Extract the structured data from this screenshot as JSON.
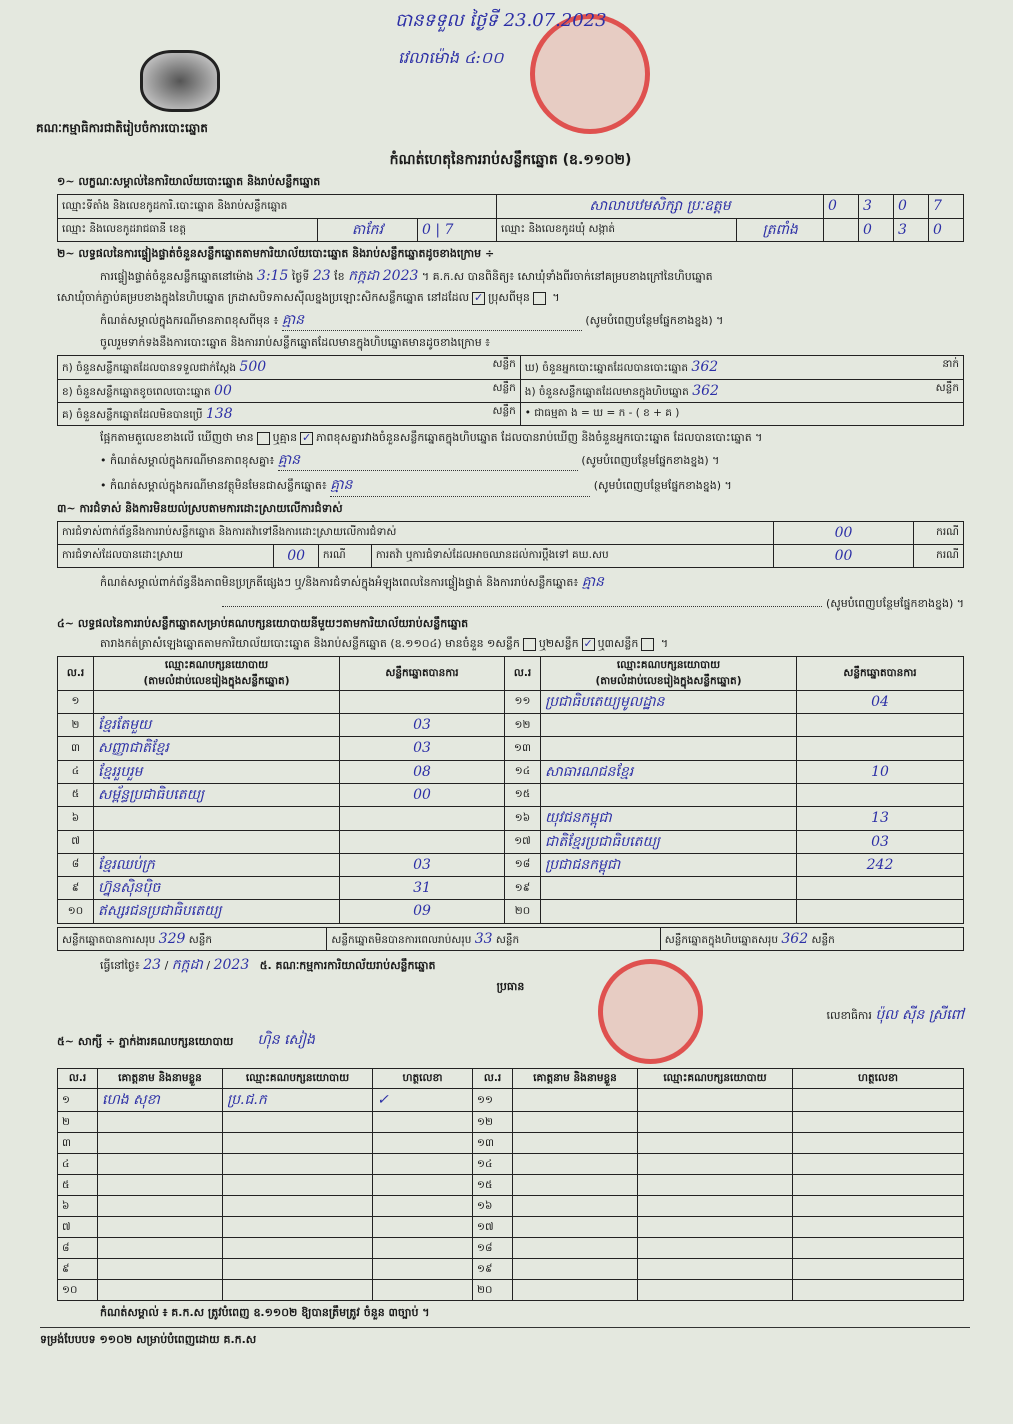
{
  "header_handwritten": {
    "received": "បានទទួល ថ្ងៃទី 23.07.2023",
    "time": "វេលាម៉ោង ៤:០០"
  },
  "org": "គណៈកម្មាធិការជាតិរៀបចំការបោះឆ្នោត",
  "title": "កំណត់ហេតុនៃការរាប់សន្លឹកឆ្នោត (ឧ.១១០២)",
  "s1": {
    "heading": "១~ លក្ខណៈសម្គាល់នៃការិយាល័យបោះឆ្នោត និងរាប់សន្លឹកឆ្នោត",
    "station_label": "ឈ្មោះទីតាំង និងលេខកូដការិ.បោះឆ្នោត និងរាប់សន្លឹកឆ្នោត",
    "station_value": "សាលាបឋមសិក្សា ប្រៈឧត្តម",
    "station_code": [
      "0",
      "3",
      "0",
      "7"
    ],
    "province_label": "ឈ្មោះ និងលេខកូដរាជធានី ខេត្ត",
    "province_value": "តាកែវ",
    "province_code": [
      "0",
      "7"
    ],
    "commune_label": "ឈ្មោះ និងលេខកូដឃុំ សង្កាត់",
    "commune_value": "ត្រពាំង",
    "commune_code": [
      "0",
      "3",
      "0"
    ]
  },
  "s2": {
    "heading": "២~ លទ្ធផលនៃការផ្ទៀងផ្ទាត់ចំនួនសន្លឹកឆ្នោតតាមការិយាល័យបោះឆ្នោត និងរាប់សន្លឹកឆ្នោតដូចខាងក្រោម ÷",
    "p1a": "ការផ្ទៀងផ្ទាត់ចំនួនសន្លឹកឆ្នោតនៅម៉ោង",
    "time": "3:15",
    "p1b": "ថ្ងៃទី",
    "day": "23",
    "p1c": "ខែ",
    "month": "កក្កដា",
    "year": "2023",
    "p1d": "។ គ.ក.ស បានពិនិត្យ៖ សោឃុំទាំងពីរចាក់នៅគម្របខាងក្រៅនៃហិបឆ្នោត",
    "p2": "សោឃុំចាក់ភ្ជាប់គម្របខាងក្នុងនៃហិបឆ្នោត ក្រដាសបិទភាសស៊ីលខ្នងប្រឡោះសិកសន្លឹកឆ្នោត នៅដដែល",
    "p2_yes": "ប្រុសពីមុន",
    "note_label": "កំណត់សម្គាល់ក្នុងករណីមានភាពខុសពីមុន ៖",
    "note_value": "គ្មាន",
    "fill_hint": "(សូមបំពេញបន្ថែមផ្នែកខាងខ្នង) ។",
    "p3": "ចូលរួមទាក់ទងនឹងការបោះឆ្នោត និងការរាប់សន្លឹកឆ្នោតដែលមានក្នុងហិបឆ្នោតមានដូចខាងក្រោម ៖",
    "rows": [
      {
        "l": "ក) ចំនួនសន្លឹកឆ្នោតដែលបានទទួលជាក់ស្តែង",
        "v": "500",
        "u": "សន្លឹក",
        "l2": "ឃ) ចំនួនអ្នកបោះឆ្នោតដែលបានបោះឆ្នោត",
        "v2": "362",
        "u2": "នាក់"
      },
      {
        "l": "ខ) ចំនួនសន្លឹកឆ្នោតខូចពេលបោះឆ្នោត",
        "v": "00",
        "u": "សន្លឹក",
        "l2": "ង) ចំនួនសន្លឹកឆ្នោតដែលមានក្នុងហិបឆ្នោត",
        "v2": "362",
        "u2": "សន្លឹក"
      },
      {
        "l": "គ) ចំនួនសន្លឹកឆ្នោតដែលមិនបានប្រើ",
        "v": "138",
        "u": "សន្លឹក",
        "l2": "• ជាធម្មតា ង = ឃ = ក - ( ខ + គ )",
        "v2": "",
        "u2": ""
      }
    ],
    "compare_a": "ផ្អែកតាមតួលេខខាងលើ ឃើញថា មាន",
    "compare_b": "ឬគ្មាន",
    "compare_c": "ភាពខុសគ្នារវាងចំនួនសន្លឹកឆ្នោតក្នុងហិបឆ្នោត ដែលបានរាប់ឃើញ និងចំនួនអ្នកបោះឆ្នោត ដែលបានបោះឆ្នោត ។",
    "diff_label": "• កំណត់សម្គាល់ក្នុងករណីមានភាពខុសគ្នា៖",
    "diff_value": "គ្មាន",
    "foreign_label": "• កំណត់សម្គាល់ក្នុងករណីមានវត្ថុមិនមែនជាសន្លឹកឆ្នោត៖",
    "foreign_value": "គ្មាន"
  },
  "s3": {
    "heading": "៣~ ការជំទាស់ និងការមិនយល់ស្របតាមការដោះស្រាយលើការជំទាស់",
    "r1": "ការជំទាស់ពាក់ព័ន្ធនឹងការរាប់សន្លឹកឆ្នោត និងការតវ៉ាទៅនឹងការដោះស្រាយលើការជំទាស់",
    "r1v": "00",
    "unit": "ករណី",
    "r2": "ការជំទាស់ដែលបានដោះស្រាយ",
    "r2v": "00",
    "r3": "ការតវ៉ា ឬការជំទាស់ដែលអាចឈានដល់ការប្ដឹងទៅ គឃ.សប",
    "r3v": "00",
    "note": "កំណត់សម្គាល់ពាក់ព័ន្ធនឹងភាពមិនប្រក្រតីផ្សេងៗ ឬ/និងការជំទាស់ក្នុងអំឡុងពេលនៃការផ្ទៀងផ្ទាត់ និងការរាប់សន្លឹកឆ្នោត៖",
    "note_value": "គ្មាន"
  },
  "s4": {
    "heading": "៤~ លទ្ធផលនៃការរាប់សន្លឹកឆ្នោតសម្រាប់គណបក្សនយោបាយនីមួយៗតាមការិយាល័យរាប់សន្លឹកឆ្នោត",
    "intro": "តារាងកត់ត្រាសំឡេងឆ្នោតតាមការិយាល័យបោះឆ្នោត និងរាប់សន្លឹកឆ្នោត (ឧ.១១០៤) មានចំនួន ១សន្លឹក",
    "opt2": "ឬ២សន្លឹក",
    "opt3": "ឬ៣សន្លឹក",
    "col_no": "ល.រ",
    "col_party": "ឈ្មោះគណបក្សនយោបាយ",
    "col_party_sub": "(តាមលំដាប់លេខរៀងក្នុងសន្លឹកឆ្នោត)",
    "col_votes": "សន្លឹកឆ្នោតបានការ",
    "parties": [
      {
        "no": "១",
        "name": "",
        "votes": ""
      },
      {
        "no": "២",
        "name": "ខ្មែរតែមួយ",
        "votes": "03"
      },
      {
        "no": "៣",
        "name": "សញ្ញាជាតិខ្មែរ",
        "votes": "03"
      },
      {
        "no": "៤",
        "name": "ខ្មែររួបរួម",
        "votes": "08"
      },
      {
        "no": "៥",
        "name": "សម្ព័ន្ធប្រជាធិបតេយ្យ",
        "votes": "00"
      },
      {
        "no": "៦",
        "name": "",
        "votes": ""
      },
      {
        "no": "៧",
        "name": "",
        "votes": ""
      },
      {
        "no": "៨",
        "name": "ខ្មែរឈប់ក្រ",
        "votes": "03"
      },
      {
        "no": "៩",
        "name": "ហ្វ៊ុនស៊ិនប៉ិច",
        "votes": "31"
      },
      {
        "no": "១០",
        "name": "ឥស្សរជនប្រជាធិបតេយ្យ",
        "votes": "09"
      },
      {
        "no": "១១",
        "name": "ប្រជាធិបតេយ្យមូលដ្ឋាន",
        "votes": "04"
      },
      {
        "no": "១២",
        "name": "",
        "votes": ""
      },
      {
        "no": "១៣",
        "name": "",
        "votes": ""
      },
      {
        "no": "១៤",
        "name": "សាធារណជនខ្មែរ",
        "votes": "10"
      },
      {
        "no": "១៥",
        "name": "",
        "votes": ""
      },
      {
        "no": "១៦",
        "name": "យុវជនកម្ពុជា",
        "votes": "13"
      },
      {
        "no": "១៧",
        "name": "ជាតិខ្មែរប្រជាធិបតេយ្យ",
        "votes": "03"
      },
      {
        "no": "១៨",
        "name": "ប្រជាជនកម្ពុជា",
        "votes": "242"
      },
      {
        "no": "១៩",
        "name": "",
        "votes": ""
      },
      {
        "no": "២០",
        "name": "",
        "votes": ""
      }
    ],
    "valid_label": "សន្លឹកឆ្នោតបានការសរុប",
    "valid": "329",
    "invalid_label": "សន្លឹកឆ្នោតមិនបានការពេលរាប់សរុប",
    "invalid": "33",
    "total_label": "សន្លឹកឆ្នោតក្នុងហិបឆ្នោតសរុប",
    "total": "362",
    "unit": "សន្លឹក"
  },
  "sign": {
    "date_label": "ធ្វើនៅថ្ងៃ៖",
    "date_day": "23",
    "date_month": "កក្កដា",
    "date_year": "2023",
    "committee": "៥. គណៈកម្មការការិយាល័យរាប់សន្លឹកឆ្នោត",
    "chair": "ប្រធាន",
    "secretary_label": "លេខាធិការ",
    "secretary_sig": "ប៉ុល ស៊ីន ស្រីពៅ",
    "chair_sig": "ហ៊ិន សៀង"
  },
  "s5": {
    "heading": "៥~ សាក្សី ÷ ភ្នាក់ងារគណបក្សនយោបាយ",
    "col_no": "ល.រ",
    "col_name": "គោត្តនាម និងនាមខ្លួន",
    "col_party": "ឈ្មោះគណបក្សនយោបាយ",
    "col_sig": "ហត្ថលេខា",
    "rows_left": [
      {
        "no": "១",
        "name": "ហេង សុខា",
        "party": "ប្រ.ជ.ក",
        "sig": "✓"
      },
      {
        "no": "២"
      },
      {
        "no": "៣"
      },
      {
        "no": "៤"
      },
      {
        "no": "៥"
      },
      {
        "no": "៦"
      },
      {
        "no": "៧"
      },
      {
        "no": "៨"
      },
      {
        "no": "៩"
      },
      {
        "no": "១០"
      }
    ],
    "rows_right": [
      {
        "no": "១១"
      },
      {
        "no": "១២"
      },
      {
        "no": "១៣"
      },
      {
        "no": "១៤"
      },
      {
        "no": "១៥"
      },
      {
        "no": "១៦"
      },
      {
        "no": "១៧"
      },
      {
        "no": "១៨"
      },
      {
        "no": "១៩"
      },
      {
        "no": "២០"
      }
    ]
  },
  "footnote": "កំណត់សម្គាល់ ៖ គ.ក.ស ត្រូវបំពេញ ឧ.១១០២ ឱ្យបានត្រឹមត្រូវ ចំនួន ៣ច្បាប់ ។",
  "footer": "ទម្រង់បែបបទ ១១០២ សម្រាប់បំពេញដោយ គ.ក.ស",
  "colors": {
    "paper": "#e4e8df",
    "ink": "#2c2fa6",
    "stamp": "#dc2828"
  }
}
